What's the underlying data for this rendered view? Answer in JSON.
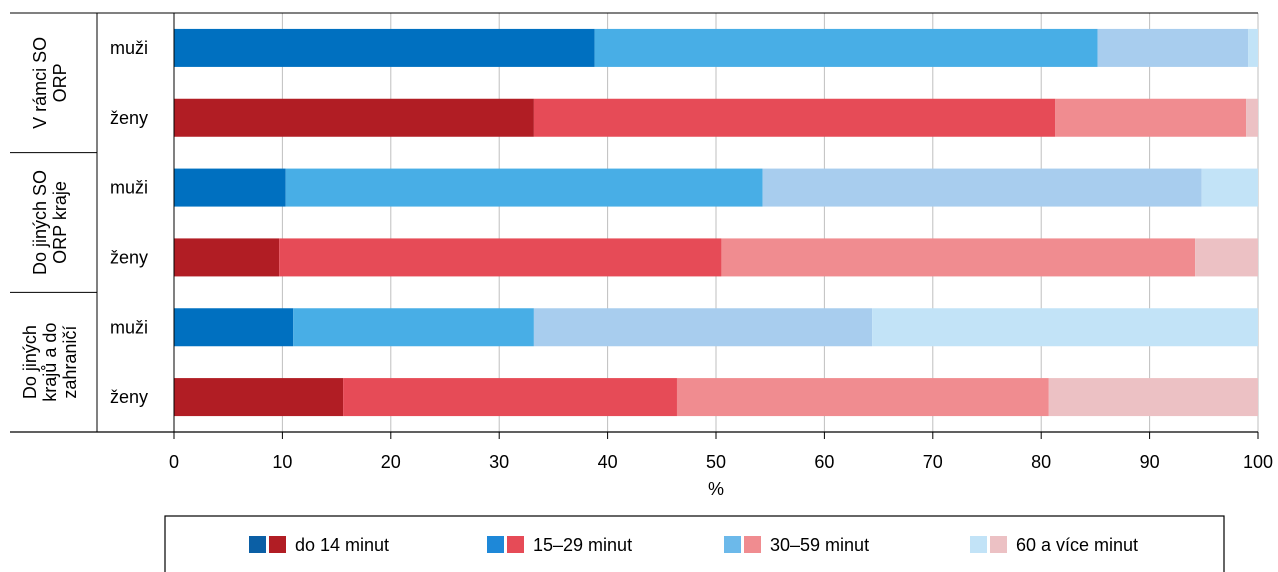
{
  "chart_data": {
    "type": "bar",
    "orientation": "horizontal",
    "stacked": true,
    "xlabel": "%",
    "xlim": [
      0,
      100
    ],
    "xticks": [
      0,
      10,
      20,
      30,
      40,
      50,
      60,
      70,
      80,
      90,
      100
    ],
    "grid": true,
    "legend_position": "bottom",
    "groups": [
      {
        "label_lines": [
          "V rámci SO",
          "ORP"
        ]
      },
      {
        "label_lines": [
          "Do jiných SO",
          "ORP kraje"
        ]
      },
      {
        "label_lines": [
          "Do jiných",
          "krajů a do",
          "zahraničí"
        ]
      }
    ],
    "rows": [
      {
        "group": 0,
        "label": "muži",
        "gender": "men",
        "values": [
          38.8,
          46.4,
          13.9,
          0.9
        ]
      },
      {
        "group": 0,
        "label": "ženy",
        "gender": "women",
        "values": [
          33.2,
          48.1,
          17.6,
          1.1
        ]
      },
      {
        "group": 1,
        "label": "muži",
        "gender": "men",
        "values": [
          10.3,
          44.0,
          40.5,
          5.2
        ]
      },
      {
        "group": 1,
        "label": "ženy",
        "gender": "women",
        "values": [
          9.7,
          40.8,
          43.7,
          5.8
        ]
      },
      {
        "group": 2,
        "label": "muži",
        "gender": "men",
        "values": [
          11.0,
          22.2,
          31.2,
          35.6
        ]
      },
      {
        "group": 2,
        "label": "ženy",
        "gender": "women",
        "values": [
          15.6,
          30.8,
          34.3,
          19.3
        ]
      }
    ],
    "series": [
      {
        "name": "do 14 minut",
        "color_men": "#0070C0",
        "color_women": "#B11D24"
      },
      {
        "name": "15–29 minut",
        "color_men": "#48AEE6",
        "color_women": "#E64B57"
      },
      {
        "name": "30–59 minut",
        "color_men": "#A8CDEE",
        "color_women": "#F08C90"
      },
      {
        "name": "60 a více minut",
        "color_men": "#C2E3F7",
        "color_women": "#ECC1C4"
      }
    ],
    "legend_swatch_colors": [
      {
        "men": "#0B5FA5",
        "women": "#B11D24"
      },
      {
        "men": "#1E88D8",
        "women": "#E64B57"
      },
      {
        "men": "#6CB9EA",
        "women": "#F08C90"
      },
      {
        "men": "#C2E3F7",
        "women": "#ECC1C4"
      }
    ],
    "grid_color": "#BFBFBF"
  }
}
